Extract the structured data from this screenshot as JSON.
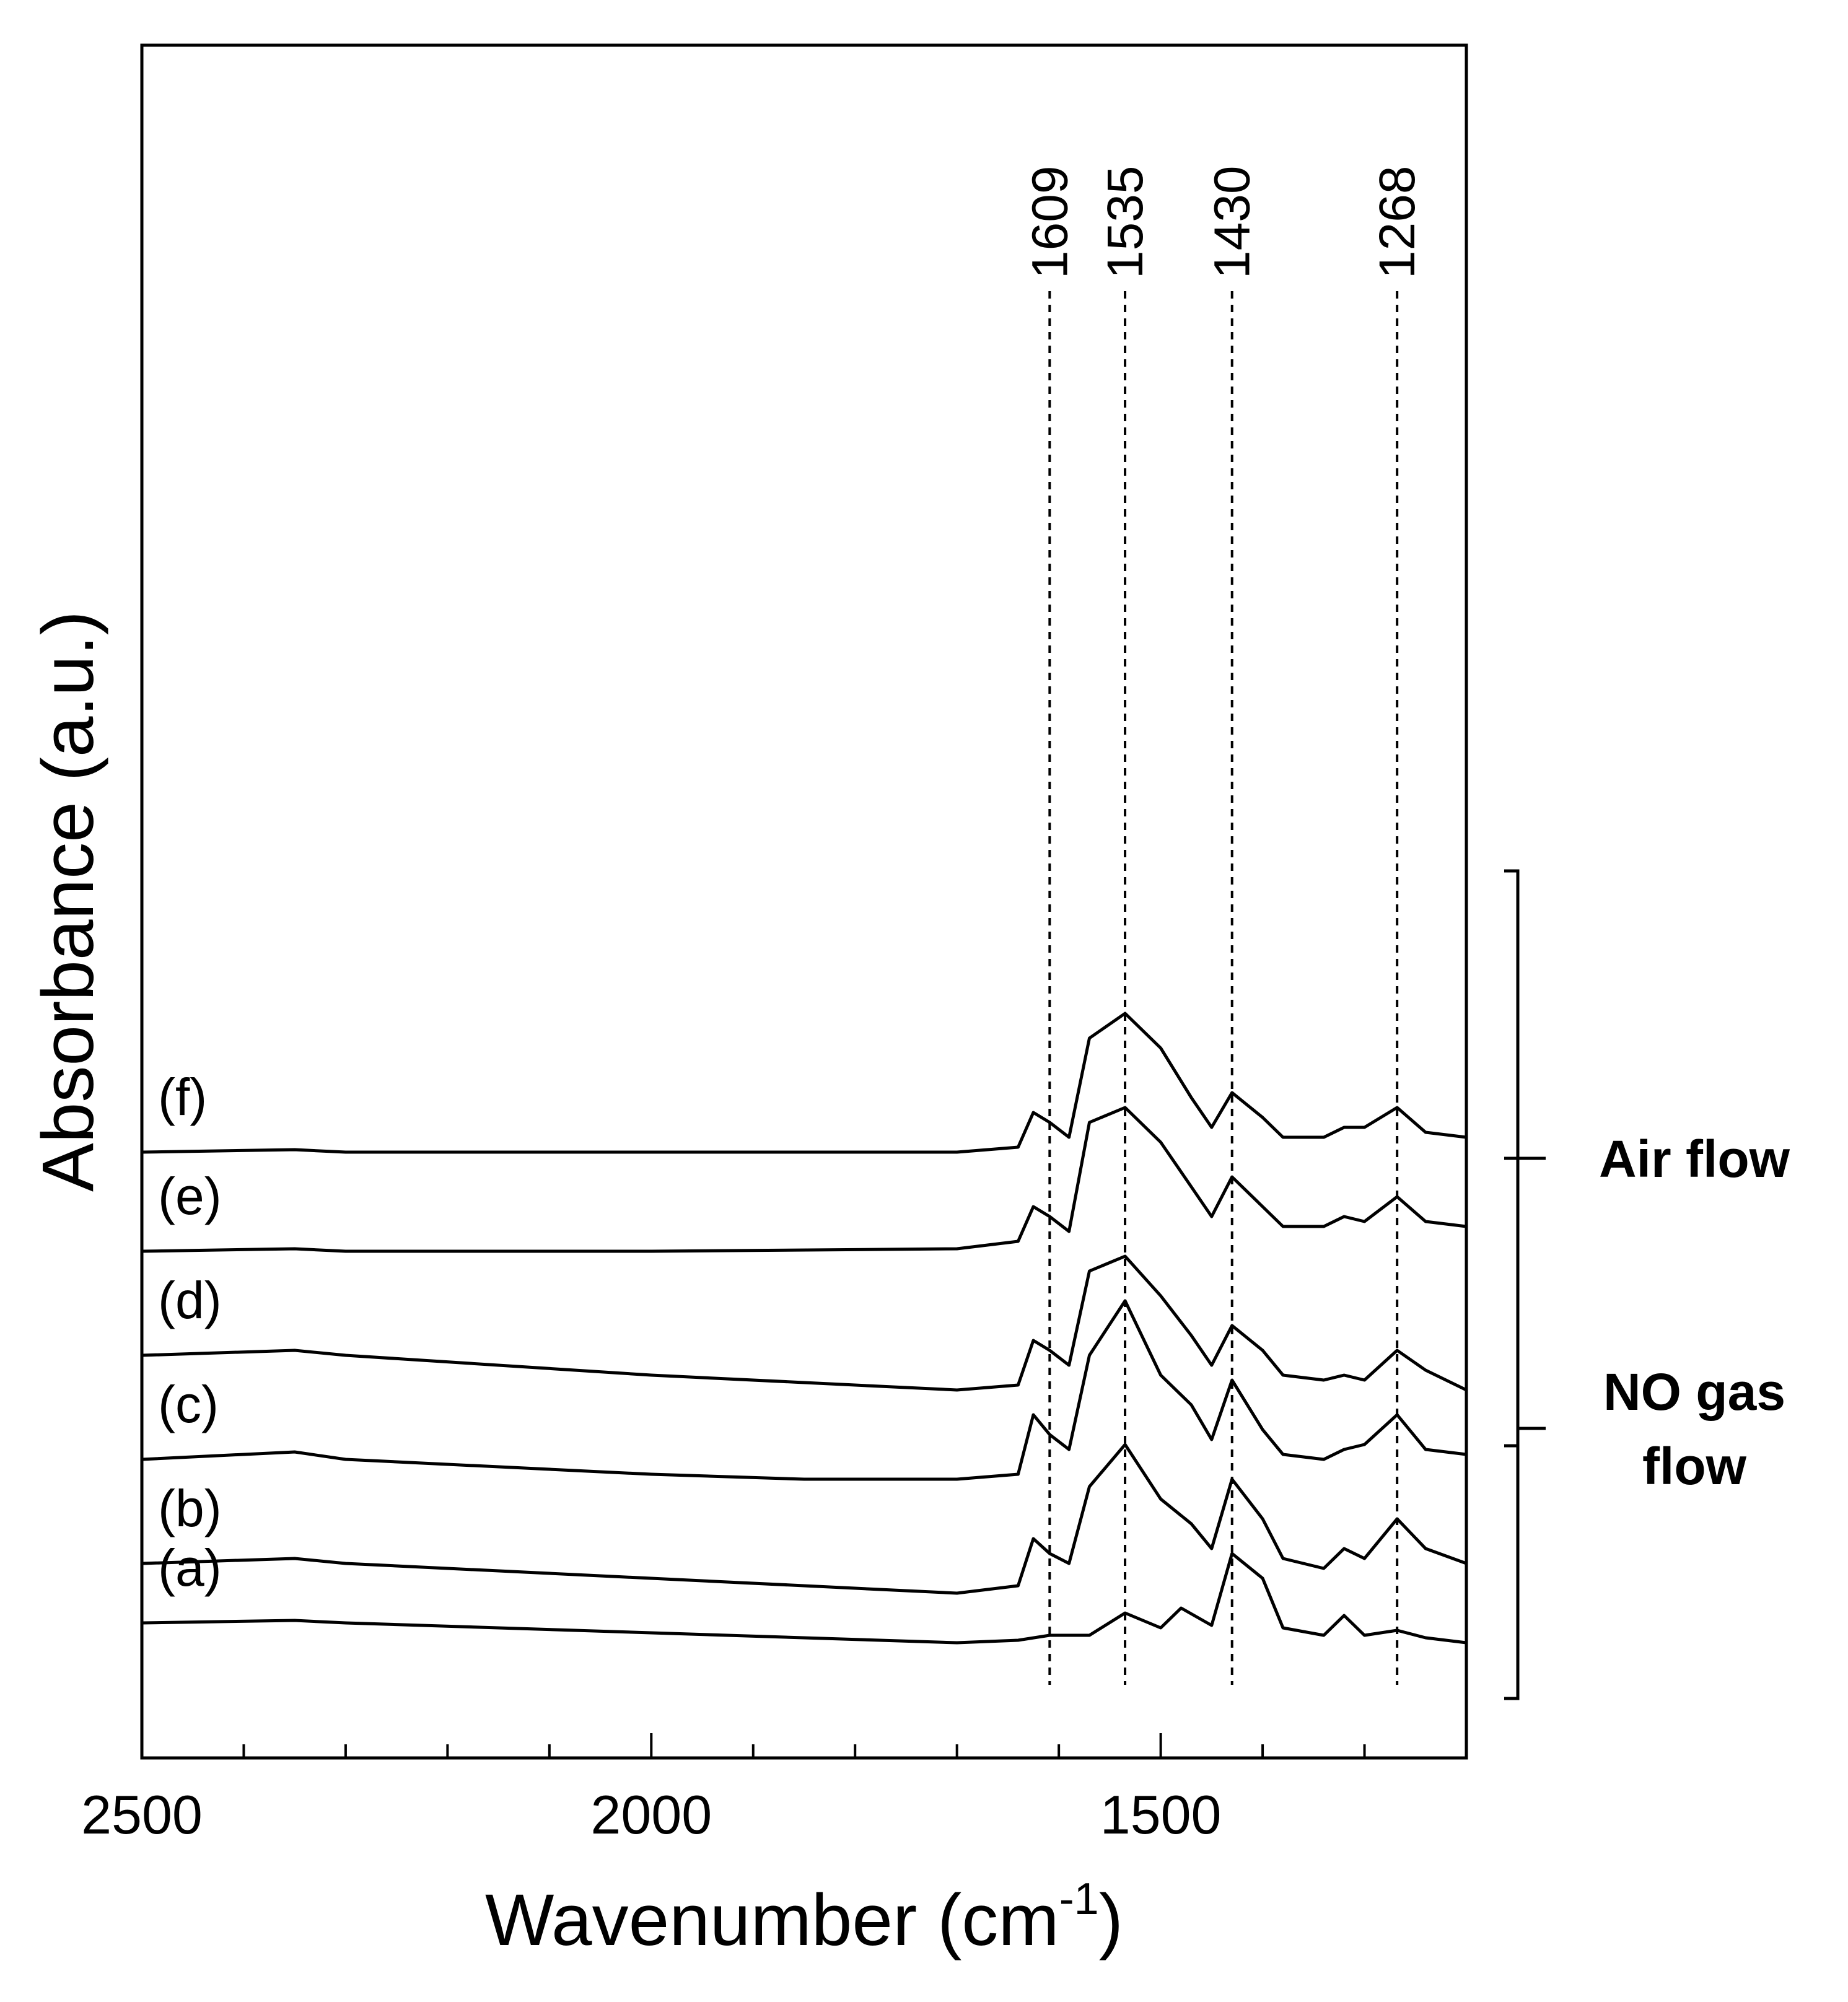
{
  "chart_data": {
    "type": "line",
    "title": "",
    "xlabel": "Wavenumber (cm",
    "xlabel_superscript": "-1",
    "xlabel_suffix": ")",
    "ylabel": "Absorbance (a.u.)",
    "xlim": [
      2500,
      1200
    ],
    "x_reversed": true,
    "y_ticks_shown": false,
    "x_ticks": [
      2500,
      2000,
      1500
    ],
    "x_tick_labels": [
      "2500",
      "2000",
      "1500"
    ],
    "peak_markers": [
      {
        "wavenumber": 1609,
        "label": "1609"
      },
      {
        "wavenumber": 1535,
        "label": "1535"
      },
      {
        "wavenumber": 1430,
        "label": "1430"
      },
      {
        "wavenumber": 1268,
        "label": "1268"
      }
    ],
    "groups": [
      {
        "name": "Air flow",
        "lines": [
          "Air flow"
        ],
        "series": [
          "(d)",
          "(e)",
          "(f)"
        ]
      },
      {
        "name": "NO gas flow",
        "lines": [
          "NO gas",
          "flow"
        ],
        "series": [
          "(a)",
          "(b)",
          "(c)"
        ]
      }
    ],
    "series": [
      {
        "name": "(a)",
        "offset": 0.0,
        "x": [
          2500,
          2350,
          2300,
          2000,
          1700,
          1640,
          1609,
          1570,
          1535,
          1500,
          1480,
          1450,
          1430,
          1400,
          1380,
          1340,
          1320,
          1300,
          1268,
          1240,
          1200
        ],
        "y": [
          0.1,
          0.11,
          0.1,
          0.06,
          0.02,
          0.03,
          0.05,
          0.05,
          0.14,
          0.08,
          0.16,
          0.09,
          0.38,
          0.28,
          0.08,
          0.05,
          0.13,
          0.05,
          0.07,
          0.04,
          0.02
        ]
      },
      {
        "name": "(b)",
        "offset": 0.3,
        "x": [
          2500,
          2350,
          2300,
          2000,
          1700,
          1640,
          1625,
          1609,
          1590,
          1570,
          1535,
          1500,
          1470,
          1450,
          1430,
          1400,
          1380,
          1340,
          1320,
          1300,
          1268,
          1240,
          1200
        ],
        "y": [
          0.04,
          0.06,
          0.04,
          -0.02,
          -0.08,
          -0.05,
          0.14,
          0.08,
          0.04,
          0.35,
          0.52,
          0.3,
          0.2,
          0.1,
          0.38,
          0.22,
          0.06,
          0.02,
          0.1,
          0.06,
          0.22,
          0.1,
          0.04
        ]
      },
      {
        "name": "(c)",
        "offset": 0.6,
        "x": [
          2500,
          2350,
          2300,
          2000,
          1850,
          1700,
          1640,
          1625,
          1609,
          1590,
          1570,
          1535,
          1500,
          1470,
          1450,
          1430,
          1400,
          1380,
          1340,
          1320,
          1300,
          1268,
          1240,
          1200
        ],
        "y": [
          0.16,
          0.19,
          0.16,
          0.1,
          0.08,
          0.08,
          0.1,
          0.34,
          0.26,
          0.2,
          0.58,
          0.8,
          0.5,
          0.38,
          0.24,
          0.48,
          0.28,
          0.18,
          0.16,
          0.2,
          0.22,
          0.34,
          0.2,
          0.18
        ]
      },
      {
        "name": "(d)",
        "offset": 1.0,
        "x": [
          2500,
          2350,
          2300,
          2000,
          1700,
          1640,
          1625,
          1609,
          1590,
          1570,
          1535,
          1500,
          1470,
          1450,
          1430,
          1400,
          1380,
          1340,
          1320,
          1300,
          1268,
          1240,
          1200
        ],
        "y": [
          0.18,
          0.2,
          0.18,
          0.1,
          0.04,
          0.06,
          0.24,
          0.2,
          0.14,
          0.52,
          0.58,
          0.42,
          0.26,
          0.14,
          0.3,
          0.2,
          0.1,
          0.08,
          0.1,
          0.08,
          0.2,
          0.12,
          0.04
        ]
      },
      {
        "name": "(e)",
        "offset": 1.4,
        "x": [
          2500,
          2350,
          2300,
          2000,
          1700,
          1640,
          1625,
          1609,
          1590,
          1570,
          1535,
          1500,
          1470,
          1450,
          1430,
          1400,
          1380,
          1340,
          1320,
          1300,
          1268,
          1240,
          1200
        ],
        "y": [
          0.2,
          0.21,
          0.2,
          0.2,
          0.21,
          0.24,
          0.38,
          0.34,
          0.28,
          0.72,
          0.78,
          0.64,
          0.46,
          0.34,
          0.5,
          0.38,
          0.3,
          0.3,
          0.34,
          0.32,
          0.42,
          0.32,
          0.3
        ]
      },
      {
        "name": "(f)",
        "offset": 1.8,
        "x": [
          2500,
          2350,
          2300,
          2000,
          1700,
          1640,
          1625,
          1609,
          1590,
          1570,
          1535,
          1500,
          1470,
          1450,
          1430,
          1400,
          1380,
          1340,
          1320,
          1300,
          1268,
          1240,
          1200
        ],
        "y": [
          0.2,
          0.21,
          0.2,
          0.2,
          0.2,
          0.22,
          0.36,
          0.32,
          0.26,
          0.66,
          0.76,
          0.62,
          0.42,
          0.3,
          0.44,
          0.34,
          0.26,
          0.26,
          0.3,
          0.3,
          0.38,
          0.28,
          0.26
        ]
      }
    ]
  }
}
